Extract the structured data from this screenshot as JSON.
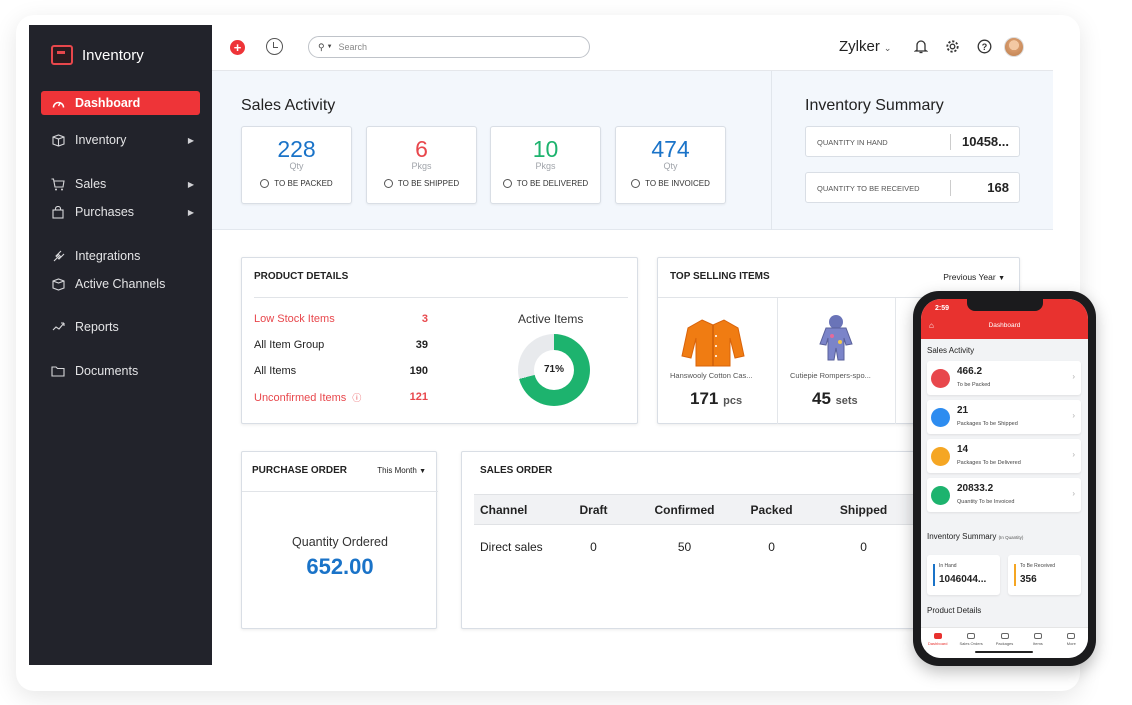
{
  "sidebar": {
    "brand": "Inventory",
    "items": [
      {
        "label": "Dashboard",
        "icon": "dashboard-icon",
        "active": true
      },
      {
        "label": "Inventory",
        "icon": "box-icon",
        "arrow": true
      },
      {
        "label": "Sales",
        "icon": "cart-icon",
        "arrow": true
      },
      {
        "label": "Purchases",
        "icon": "bag-icon",
        "arrow": true
      },
      {
        "label": "Integrations",
        "icon": "plug-icon"
      },
      {
        "label": "Active Channels",
        "icon": "channel-icon"
      },
      {
        "label": "Reports",
        "icon": "reports-icon"
      },
      {
        "label": "Documents",
        "icon": "folder-icon"
      }
    ]
  },
  "topbar": {
    "search_placeholder": "Search",
    "org_name": "Zylker"
  },
  "sales_activity": {
    "title": "Sales Activity",
    "cards": [
      {
        "value": "228",
        "unit": "Qty",
        "label": "TO BE PACKED",
        "color": "#1a73c8"
      },
      {
        "value": "6",
        "unit": "Pkgs",
        "label": "TO BE SHIPPED",
        "color": "#e8474c"
      },
      {
        "value": "10",
        "unit": "Pkgs",
        "label": "TO BE DELIVERED",
        "color": "#1db36e"
      },
      {
        "value": "474",
        "unit": "Qty",
        "label": "TO BE INVOICED",
        "color": "#1a73c8"
      }
    ]
  },
  "inventory_summary": {
    "title": "Inventory Summary",
    "rows": [
      {
        "label": "QUANTITY IN HAND",
        "value": "10458..."
      },
      {
        "label": "QUANTITY TO BE RECEIVED",
        "value": "168"
      }
    ]
  },
  "product_details": {
    "title": "PRODUCT DETAILS",
    "rows": [
      {
        "label": "Low Stock Items",
        "value": "3",
        "alert": true
      },
      {
        "label": "All Item Group",
        "value": "39"
      },
      {
        "label": "All Items",
        "value": "190"
      },
      {
        "label": "Unconfirmed Items",
        "value": "121",
        "alert": true
      }
    ],
    "active_items_label": "Active Items",
    "active_items_percent": 71,
    "active_items_text": "71%"
  },
  "top_selling": {
    "title": "TOP SELLING ITEMS",
    "period": "Previous Year",
    "items": [
      {
        "name": "Hanswooly Cotton Cas...",
        "qty": "171",
        "unit": "pcs"
      },
      {
        "name": "Cutiepie Rompers-spo...",
        "qty": "45",
        "unit": "sets"
      }
    ]
  },
  "purchase_order": {
    "title": "PURCHASE ORDER",
    "period": "This Month",
    "qty_label": "Quantity Ordered",
    "qty_value": "652.00"
  },
  "sales_order": {
    "title": "SALES ORDER",
    "columns": [
      "Channel",
      "Draft",
      "Confirmed",
      "Packed",
      "Shipped"
    ],
    "rows": [
      {
        "channel": "Direct sales",
        "draft": "0",
        "confirmed": "50",
        "packed": "0",
        "shipped": "0"
      }
    ]
  },
  "mobile": {
    "time": "2:59",
    "title": "Dashboard",
    "sales_activity_title": "Sales Activity",
    "cards": [
      {
        "value": "466.2",
        "label": "To be Packed",
        "color": "#e8474c"
      },
      {
        "value": "21",
        "label": "Packages To be Shipped",
        "color": "#2d8cf0"
      },
      {
        "value": "14",
        "label": "Packages To be Delivered",
        "color": "#f5a623"
      },
      {
        "value": "20833.2",
        "label": "Quantity To be Invoiced",
        "color": "#1db36e"
      }
    ],
    "inventory_summary_title": "Inventory Summary",
    "inventory_summary_note": "(In Quantity)",
    "in_hand_label": "In Hand",
    "in_hand_value": "1046044...",
    "to_receive_label": "To Be Received",
    "to_receive_value": "356",
    "product_details_title": "Product Details",
    "tabs": [
      "Dashboard",
      "Sales Orders",
      "Packages",
      "Items",
      "More"
    ]
  }
}
